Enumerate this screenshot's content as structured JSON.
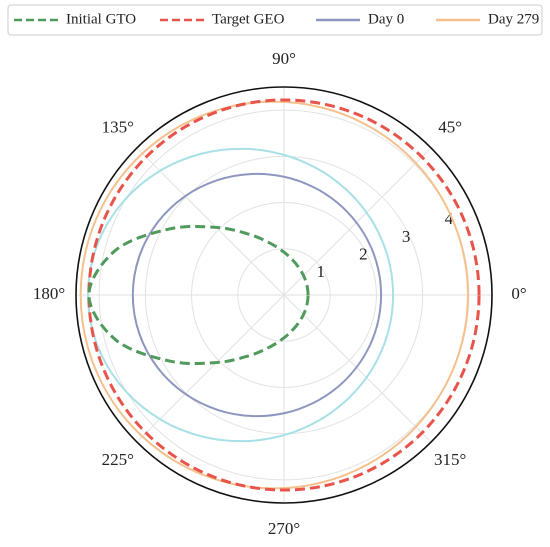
{
  "chart_data": {
    "type": "polar",
    "theta": [
      0,
      15,
      30,
      45,
      60,
      75,
      90,
      105,
      120,
      135,
      150,
      165,
      180,
      195,
      210,
      225,
      240,
      255,
      270,
      285,
      300,
      315,
      330,
      345,
      360
    ],
    "series": [
      {
        "name": "Initial GTO",
        "color": "#4f9a5c",
        "dashed": true,
        "r": [
          0.52,
          0.528,
          0.552,
          0.597,
          0.666,
          0.77,
          0.926,
          1.16,
          1.518,
          2.067,
          2.858,
          3.764,
          4.221,
          3.764,
          2.858,
          2.067,
          1.518,
          1.16,
          0.926,
          0.77,
          0.666,
          0.597,
          0.552,
          0.528,
          0.52
        ]
      },
      {
        "name": "Target GEO",
        "color": "#e8534a",
        "dashed": true,
        "r": [
          4.22,
          4.22,
          4.22,
          4.22,
          4.22,
          4.22,
          4.22,
          4.22,
          4.22,
          4.22,
          4.22,
          4.22,
          4.22,
          4.22,
          4.22,
          4.22,
          4.22,
          4.22,
          4.22,
          4.22,
          4.22,
          4.22,
          4.22,
          4.22,
          4.22
        ]
      },
      {
        "name": "Day 0",
        "color": "#8e96c0",
        "dashed": false,
        "r": [
          2.1,
          2.113,
          2.152,
          2.216,
          2.307,
          2.421,
          2.558,
          2.711,
          2.871,
          3.024,
          3.153,
          3.24,
          3.271,
          3.24,
          3.153,
          3.024,
          2.871,
          2.711,
          2.558,
          2.421,
          2.307,
          2.216,
          2.152,
          2.113,
          2.1
        ]
      },
      {
        "name": "Day 279",
        "color": "#f5c08c",
        "dashed": false,
        "r": [
          3.98,
          3.986,
          4.005,
          4.036,
          4.077,
          4.125,
          4.179,
          4.234,
          4.287,
          4.332,
          4.369,
          4.392,
          4.399,
          4.392,
          4.369,
          4.332,
          4.287,
          4.234,
          4.179,
          4.125,
          4.077,
          4.036,
          4.005,
          3.986,
          3.98
        ]
      },
      {
        "color": "#a8e0e8",
        "dashed": false,
        "r": [
          2.36,
          2.378,
          2.432,
          2.524,
          2.654,
          2.824,
          3.032,
          3.273,
          3.535,
          3.797,
          4.024,
          4.183,
          4.239,
          4.183,
          4.024,
          3.797,
          3.535,
          3.273,
          3.032,
          2.824,
          2.654,
          2.524,
          2.432,
          2.378,
          2.36
        ]
      }
    ],
    "rlim": [
      0,
      4.5
    ],
    "rticks": [
      1,
      2,
      3,
      4
    ],
    "rlabel_angle": 22.5,
    "thetaticks": [
      {
        "value": 0,
        "label": "0°"
      },
      {
        "value": 45,
        "label": "45°"
      },
      {
        "value": 90,
        "label": "90°"
      },
      {
        "value": 135,
        "label": "135°"
      },
      {
        "value": 180,
        "label": "180°"
      },
      {
        "value": 225,
        "label": "225°"
      },
      {
        "value": 270,
        "label": "270°"
      },
      {
        "value": 315,
        "label": "315°"
      }
    ],
    "grid": true,
    "legend": "top"
  }
}
